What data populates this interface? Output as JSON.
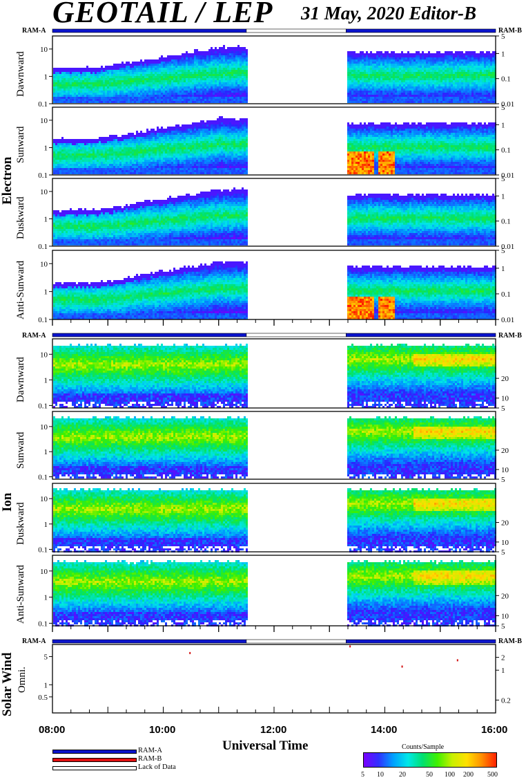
{
  "header": {
    "title": "GEOTAIL / LEP",
    "date_label": "31 May, 2020   Editor-B"
  },
  "sections": [
    {
      "name": "Electron",
      "ram_left": "RAM-A",
      "ram_right": "RAM-B",
      "panels": [
        "Dawnward",
        "Sunward",
        "Duskward",
        "Anti-Sunward"
      ]
    },
    {
      "name": "Ion",
      "ram_left": "RAM-A",
      "ram_right": "RAM-B",
      "panels": [
        "Dawnward",
        "Sunward",
        "Duskward",
        "Anti-Sunward"
      ]
    },
    {
      "name": "Solar Wind",
      "ram_left": "RAM-A",
      "ram_right": "RAM-B",
      "panels": [
        "Omni."
      ]
    }
  ],
  "chart_data": {
    "type": "heatmap",
    "xlabel": "Universal Time",
    "x_ticks": [
      "08:00",
      "10:00",
      "12:00",
      "14:00",
      "16:00"
    ],
    "x_range_hours": [
      8,
      16
    ],
    "data_gap_hours": [
      11.5,
      13.3
    ],
    "ram_state_intervals": [
      {
        "state": "RAM-A",
        "start": 8.0,
        "end": 11.5
      },
      {
        "state": "Lack of Data",
        "start": 11.5,
        "end": 13.3
      },
      {
        "state": "RAM-A",
        "start": 13.3,
        "end": 16.0
      }
    ],
    "electron": {
      "left_axis": {
        "ticks": [
          "10",
          "1",
          "0.1"
        ],
        "range": [
          0.1,
          30
        ],
        "scale": "log"
      },
      "right_axis": {
        "ticks": [
          "5",
          "1",
          "0.1",
          "0.01"
        ],
        "range": [
          0.01,
          5
        ],
        "scale": "log"
      },
      "panels": [
        {
          "direction": "Dawnward",
          "hot_spots": false
        },
        {
          "direction": "Sunward",
          "hot_spots": true
        },
        {
          "direction": "Duskward",
          "hot_spots": false
        },
        {
          "direction": "Anti-Sunward",
          "hot_spots": true
        }
      ]
    },
    "ion": {
      "left_axis": {
        "ticks": [
          "10",
          "1",
          "0.1"
        ],
        "range": [
          0.08,
          40
        ],
        "scale": "log"
      },
      "right_axis": {
        "ticks": [
          "20",
          "10",
          "5"
        ],
        "range": [
          5,
          40
        ]
      },
      "panels": [
        {
          "direction": "Dawnward"
        },
        {
          "direction": "Sunward"
        },
        {
          "direction": "Duskward"
        },
        {
          "direction": "Anti-Sunward"
        }
      ]
    },
    "solar_wind": {
      "left_axis": {
        "ticks": [
          "5",
          "1",
          "0.5"
        ],
        "range": [
          0.2,
          10
        ],
        "scale": "log"
      },
      "right_axis": {
        "ticks": [
          "2",
          "1",
          "0.2"
        ],
        "range": [
          0.1,
          4
        ]
      },
      "points": [
        {
          "t": 10.47,
          "v": 6.5
        },
        {
          "t": 13.36,
          "v": 9.5
        },
        {
          "t": 14.3,
          "v": 3.0
        },
        {
          "t": 15.3,
          "v": 4.3
        }
      ]
    },
    "colorbar": {
      "title": "Counts/Sample",
      "ticks": [
        "5",
        "10",
        "20",
        "50",
        "100",
        "200",
        "500"
      ],
      "range": [
        5,
        500
      ],
      "scale": "log"
    }
  },
  "legend": {
    "items": [
      {
        "label": "RAM-A",
        "color": "#0b14cc"
      },
      {
        "label": "RAM-B",
        "color": "#e01010"
      },
      {
        "label": "Lack of Data",
        "color": "#ffffff"
      }
    ]
  },
  "colors": {
    "ram_a": "#0b14cc",
    "ram_b": "#e01010",
    "frame": "#000000"
  }
}
